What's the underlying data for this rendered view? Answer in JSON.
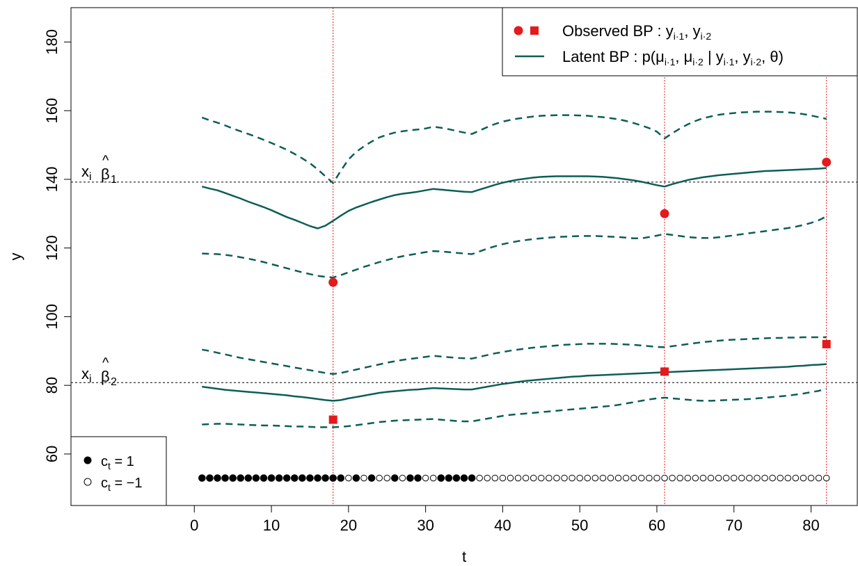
{
  "chart_data": {
    "type": "line",
    "title": "",
    "xlabel": "t",
    "ylabel": "y",
    "xlim": [
      -16,
      86
    ],
    "ylim": [
      45,
      190
    ],
    "x_ticks": [
      "0",
      "10",
      "20",
      "30",
      "40",
      "50",
      "60",
      "70",
      "80"
    ],
    "y_ticks": [
      "60",
      "80",
      "100",
      "120",
      "140",
      "160",
      "180"
    ],
    "grid": false,
    "legend_position": "top-right",
    "colors": {
      "latent": "#0c5e56",
      "observed": "#e41a1c",
      "guide": "#e41a1c",
      "axis": "#000000"
    },
    "legend": {
      "observed_label": "Observed BP : y",
      "observed_sub1": "i·1",
      "observed_sep": ", y",
      "observed_sub2": "i·2",
      "latent_label": "Latent BP : p(μ",
      "latent_sub1": "i·1",
      "latent_sep1": ", μ",
      "latent_sub2": "i·2",
      "latent_cond": " | y",
      "latent_sub3": "i·1",
      "latent_sep2": ", y",
      "latent_sub4": "i·2",
      "latent_end": ", θ)"
    },
    "ct_legend": {
      "label_base": "c",
      "label_sub": "t",
      "filled_value": " = 1",
      "open_value": " = −1"
    },
    "reference_lines": [
      {
        "y": 139.2,
        "label_base": "x",
        "label_sub": "i",
        "label_hat": "β",
        "label_index": "1"
      },
      {
        "y": 80.8,
        "label_base": "x",
        "label_sub": "i",
        "label_hat": "β",
        "label_index": "2"
      }
    ],
    "vertical_lines": [
      18,
      61,
      82
    ],
    "series": [
      {
        "name": "Latent BP mean 1",
        "style": "solid",
        "x": [
          1,
          2,
          3,
          4,
          5,
          6,
          7,
          8,
          9,
          10,
          11,
          12,
          13,
          14,
          15,
          16,
          17,
          18,
          19,
          20,
          21,
          22,
          23,
          24,
          25,
          26,
          27,
          28,
          29,
          30,
          31,
          32,
          33,
          34,
          35,
          36,
          37,
          38,
          39,
          40,
          41,
          42,
          43,
          44,
          45,
          46,
          47,
          48,
          49,
          50,
          51,
          52,
          53,
          54,
          55,
          56,
          57,
          58,
          59,
          60,
          61,
          62,
          63,
          64,
          65,
          66,
          67,
          68,
          69,
          70,
          71,
          72,
          73,
          74,
          75,
          76,
          77,
          78,
          79,
          80,
          81,
          82
        ],
        "y": [
          137.9,
          137.3,
          136.8,
          136.0,
          135.2,
          134.4,
          133.5,
          132.7,
          131.9,
          131.0,
          130.0,
          129.0,
          128.2,
          127.3,
          126.4,
          125.7,
          126.5,
          127.9,
          129.4,
          130.8,
          131.8,
          132.6,
          133.4,
          134.1,
          134.8,
          135.4,
          135.8,
          136.1,
          136.4,
          136.8,
          137.2,
          137.0,
          136.8,
          136.6,
          136.4,
          136.3,
          137.0,
          137.7,
          138.4,
          139.0,
          139.5,
          139.9,
          140.2,
          140.5,
          140.7,
          140.8,
          140.9,
          140.9,
          140.9,
          140.9,
          140.9,
          140.8,
          140.7,
          140.5,
          140.3,
          140.0,
          139.7,
          139.3,
          138.8,
          138.3,
          137.9,
          138.6,
          139.2,
          139.8,
          140.2,
          140.6,
          140.9,
          141.2,
          141.4,
          141.6,
          141.8,
          142.0,
          142.2,
          142.4,
          142.5,
          142.6,
          142.7,
          142.8,
          142.9,
          143.0,
          143.1,
          143.3
        ]
      },
      {
        "name": "Latent BP upper 1",
        "style": "dashed",
        "x": [
          1,
          2,
          3,
          4,
          5,
          6,
          7,
          8,
          9,
          10,
          11,
          12,
          13,
          14,
          15,
          16,
          17,
          18,
          19,
          20,
          21,
          22,
          23,
          24,
          25,
          26,
          27,
          28,
          29,
          30,
          31,
          32,
          33,
          34,
          35,
          36,
          37,
          38,
          39,
          40,
          41,
          42,
          43,
          44,
          45,
          46,
          47,
          48,
          49,
          50,
          51,
          52,
          53,
          54,
          55,
          56,
          57,
          58,
          59,
          60,
          61,
          62,
          63,
          64,
          65,
          66,
          67,
          68,
          69,
          70,
          71,
          72,
          73,
          74,
          75,
          76,
          77,
          78,
          79,
          80,
          81,
          82
        ],
        "y": [
          158.0,
          157.2,
          156.5,
          155.7,
          154.8,
          154.0,
          153.2,
          152.4,
          151.5,
          150.6,
          149.6,
          148.6,
          147.4,
          146.1,
          144.7,
          142.9,
          140.9,
          138.9,
          142.5,
          145.8,
          148.0,
          149.6,
          151.0,
          152.2,
          153.0,
          153.6,
          154.0,
          154.3,
          154.5,
          154.8,
          155.3,
          155.0,
          154.6,
          154.1,
          153.6,
          153.2,
          154.2,
          155.2,
          156.1,
          156.8,
          157.3,
          157.7,
          158.0,
          158.3,
          158.5,
          158.6,
          158.7,
          158.7,
          158.7,
          158.6,
          158.5,
          158.3,
          158.1,
          157.8,
          157.5,
          157.0,
          156.4,
          155.7,
          154.9,
          153.9,
          151.9,
          153.4,
          154.8,
          156.0,
          157.0,
          157.8,
          158.3,
          158.8,
          159.1,
          159.3,
          159.5,
          159.6,
          159.7,
          159.7,
          159.7,
          159.6,
          159.5,
          159.3,
          159.0,
          158.6,
          158.1,
          157.6
        ]
      },
      {
        "name": "Latent BP lower 1",
        "style": "dashed",
        "x": [
          1,
          2,
          3,
          4,
          5,
          6,
          7,
          8,
          9,
          10,
          11,
          12,
          13,
          14,
          15,
          16,
          17,
          18,
          19,
          20,
          21,
          22,
          23,
          24,
          25,
          26,
          27,
          28,
          29,
          30,
          31,
          32,
          33,
          34,
          35,
          36,
          37,
          38,
          39,
          40,
          41,
          42,
          43,
          44,
          45,
          46,
          47,
          48,
          49,
          50,
          51,
          52,
          53,
          54,
          55,
          56,
          57,
          58,
          59,
          60,
          61,
          62,
          63,
          64,
          65,
          66,
          67,
          68,
          69,
          70,
          71,
          72,
          73,
          74,
          75,
          76,
          77,
          78,
          79,
          80,
          81,
          82
        ],
        "y": [
          118.4,
          118.3,
          118.2,
          118.0,
          117.7,
          117.3,
          116.9,
          116.4,
          115.9,
          115.3,
          114.7,
          114.1,
          113.5,
          112.9,
          112.4,
          111.9,
          111.6,
          111.4,
          112.1,
          112.9,
          113.7,
          114.5,
          115.2,
          115.9,
          116.5,
          117.1,
          117.6,
          118.0,
          118.4,
          118.8,
          119.1,
          119.0,
          118.8,
          118.6,
          118.4,
          118.2,
          119.0,
          119.8,
          120.5,
          121.1,
          121.6,
          122.0,
          122.3,
          122.6,
          122.8,
          123.0,
          123.2,
          123.3,
          123.4,
          123.5,
          123.5,
          123.5,
          123.4,
          123.3,
          123.2,
          123.0,
          122.8,
          122.8,
          123.2,
          123.6,
          124.1,
          123.8,
          123.5,
          123.2,
          123.0,
          122.9,
          122.9,
          123.1,
          123.4,
          123.7,
          124.0,
          124.3,
          124.6,
          124.9,
          125.2,
          125.5,
          125.8,
          126.2,
          126.7,
          127.3,
          128.1,
          129.2
        ]
      },
      {
        "name": "Latent BP mean 2",
        "style": "solid",
        "x": [
          1,
          2,
          3,
          4,
          5,
          6,
          7,
          8,
          9,
          10,
          11,
          12,
          13,
          14,
          15,
          16,
          17,
          18,
          19,
          20,
          21,
          22,
          23,
          24,
          25,
          26,
          27,
          28,
          29,
          30,
          31,
          32,
          33,
          34,
          35,
          36,
          37,
          38,
          39,
          40,
          41,
          42,
          43,
          44,
          45,
          46,
          47,
          48,
          49,
          50,
          51,
          52,
          53,
          54,
          55,
          56,
          57,
          58,
          59,
          60,
          61,
          62,
          63,
          64,
          65,
          66,
          67,
          68,
          69,
          70,
          71,
          72,
          73,
          74,
          75,
          76,
          77,
          78,
          79,
          80,
          81,
          82
        ],
        "y": [
          79.6,
          79.3,
          79.0,
          78.7,
          78.5,
          78.3,
          78.1,
          77.9,
          77.7,
          77.5,
          77.3,
          77.1,
          76.8,
          76.6,
          76.3,
          76.0,
          75.7,
          75.5,
          75.7,
          76.2,
          76.6,
          77.0,
          77.4,
          77.8,
          78.1,
          78.3,
          78.5,
          78.7,
          78.8,
          79.0,
          79.2,
          79.1,
          79.0,
          78.9,
          78.8,
          78.8,
          79.2,
          79.6,
          80.0,
          80.4,
          80.7,
          81.0,
          81.3,
          81.5,
          81.7,
          81.9,
          82.1,
          82.3,
          82.5,
          82.6,
          82.8,
          82.9,
          83.0,
          83.1,
          83.2,
          83.3,
          83.4,
          83.5,
          83.6,
          83.7,
          83.8,
          83.9,
          84.0,
          84.1,
          84.2,
          84.3,
          84.4,
          84.5,
          84.6,
          84.7,
          84.8,
          84.9,
          85.0,
          85.1,
          85.2,
          85.3,
          85.4,
          85.6,
          85.7,
          85.9,
          86.0,
          86.2
        ]
      },
      {
        "name": "Latent BP upper 2",
        "style": "dashed",
        "x": [
          1,
          2,
          3,
          4,
          5,
          6,
          7,
          8,
          9,
          10,
          11,
          12,
          13,
          14,
          15,
          16,
          17,
          18,
          19,
          20,
          21,
          22,
          23,
          24,
          25,
          26,
          27,
          28,
          29,
          30,
          31,
          32,
          33,
          34,
          35,
          36,
          37,
          38,
          39,
          40,
          41,
          42,
          43,
          44,
          45,
          46,
          47,
          48,
          49,
          50,
          51,
          52,
          53,
          54,
          55,
          56,
          57,
          58,
          59,
          60,
          61,
          62,
          63,
          64,
          65,
          66,
          67,
          68,
          69,
          70,
          71,
          72,
          73,
          74,
          75,
          76,
          77,
          78,
          79,
          80,
          81,
          82
        ],
        "y": [
          90.4,
          90.0,
          89.5,
          89.0,
          88.5,
          88.0,
          87.6,
          87.2,
          86.8,
          86.4,
          86.0,
          85.6,
          85.2,
          84.8,
          84.4,
          84.0,
          83.6,
          83.3,
          83.6,
          84.1,
          84.6,
          85.1,
          85.6,
          86.1,
          86.6,
          87.0,
          87.4,
          87.7,
          88.0,
          88.3,
          88.6,
          88.4,
          88.2,
          88.0,
          87.9,
          87.8,
          88.3,
          88.8,
          89.3,
          89.7,
          90.1,
          90.4,
          90.7,
          91.0,
          91.2,
          91.4,
          91.6,
          91.8,
          91.9,
          92.0,
          92.1,
          92.1,
          92.1,
          92.1,
          92.0,
          91.9,
          91.8,
          91.6,
          91.4,
          91.2,
          91.1,
          91.4,
          91.7,
          92.0,
          92.3,
          92.6,
          92.8,
          93.0,
          93.2,
          93.3,
          93.4,
          93.5,
          93.6,
          93.7,
          93.8,
          93.8,
          93.9,
          93.9,
          94.0,
          94.0,
          94.0,
          94.0
        ]
      },
      {
        "name": "Latent BP lower 2",
        "style": "dashed",
        "x": [
          1,
          2,
          3,
          4,
          5,
          6,
          7,
          8,
          9,
          10,
          11,
          12,
          13,
          14,
          15,
          16,
          17,
          18,
          19,
          20,
          21,
          22,
          23,
          24,
          25,
          26,
          27,
          28,
          29,
          30,
          31,
          32,
          33,
          34,
          35,
          36,
          37,
          38,
          39,
          40,
          41,
          42,
          43,
          44,
          45,
          46,
          47,
          48,
          49,
          50,
          51,
          52,
          53,
          54,
          55,
          56,
          57,
          58,
          59,
          60,
          61,
          62,
          63,
          64,
          65,
          66,
          67,
          68,
          69,
          70,
          71,
          72,
          73,
          74,
          75,
          76,
          77,
          78,
          79,
          80,
          81,
          82
        ],
        "y": [
          68.6,
          68.7,
          68.8,
          68.8,
          68.7,
          68.6,
          68.5,
          68.4,
          68.3,
          68.3,
          68.2,
          68.1,
          68.0,
          68.0,
          67.9,
          67.8,
          67.8,
          67.8,
          67.9,
          68.1,
          68.4,
          68.7,
          69.0,
          69.3,
          69.5,
          69.7,
          69.8,
          69.9,
          70.0,
          70.1,
          70.2,
          70.0,
          69.8,
          69.6,
          69.5,
          69.5,
          69.9,
          70.3,
          70.7,
          71.1,
          71.4,
          71.6,
          71.8,
          72.0,
          72.2,
          72.4,
          72.6,
          72.8,
          73.0,
          73.2,
          73.4,
          73.6,
          73.8,
          74.0,
          74.3,
          74.7,
          75.1,
          75.5,
          75.9,
          76.2,
          76.4,
          76.2,
          76.0,
          75.8,
          75.6,
          75.5,
          75.5,
          75.6,
          75.7,
          75.8,
          75.9,
          76.0,
          76.2,
          76.4,
          76.6,
          76.8,
          77.0,
          77.3,
          77.6,
          78.0,
          78.4,
          79.0
        ]
      }
    ],
    "observed_y1": {
      "shape": "circle",
      "x": [
        18,
        61,
        82
      ],
      "y": [
        110,
        130,
        145
      ]
    },
    "observed_y2": {
      "shape": "square",
      "x": [
        18,
        61,
        82
      ],
      "y": [
        70,
        84,
        92
      ]
    },
    "ct": {
      "y": 53,
      "x": [
        1,
        2,
        3,
        4,
        5,
        6,
        7,
        8,
        9,
        10,
        11,
        12,
        13,
        14,
        15,
        16,
        17,
        18,
        19,
        20,
        21,
        22,
        23,
        24,
        25,
        26,
        27,
        28,
        29,
        30,
        31,
        32,
        33,
        34,
        35,
        36,
        37,
        38,
        39,
        40,
        41,
        42,
        43,
        44,
        45,
        46,
        47,
        48,
        49,
        50,
        51,
        52,
        53,
        54,
        55,
        56,
        57,
        58,
        59,
        60,
        61,
        62,
        63,
        64,
        65,
        66,
        67,
        68,
        69,
        70,
        71,
        72,
        73,
        74,
        75,
        76,
        77,
        78,
        79,
        80,
        81,
        82
      ],
      "values": [
        1,
        1,
        1,
        1,
        1,
        1,
        1,
        1,
        1,
        1,
        1,
        1,
        1,
        1,
        1,
        1,
        1,
        1,
        1,
        -1,
        1,
        -1,
        1,
        -1,
        -1,
        1,
        -1,
        1,
        1,
        -1,
        -1,
        1,
        1,
        1,
        1,
        1,
        -1,
        -1,
        -1,
        -1,
        -1,
        -1,
        -1,
        -1,
        -1,
        -1,
        -1,
        -1,
        -1,
        -1,
        -1,
        -1,
        -1,
        -1,
        -1,
        -1,
        -1,
        -1,
        -1,
        -1,
        -1,
        -1,
        -1,
        -1,
        -1,
        -1,
        -1,
        -1,
        -1,
        -1,
        -1,
        -1,
        -1,
        -1,
        -1,
        -1,
        -1,
        -1,
        -1,
        -1,
        -1,
        -1
      ]
    }
  }
}
